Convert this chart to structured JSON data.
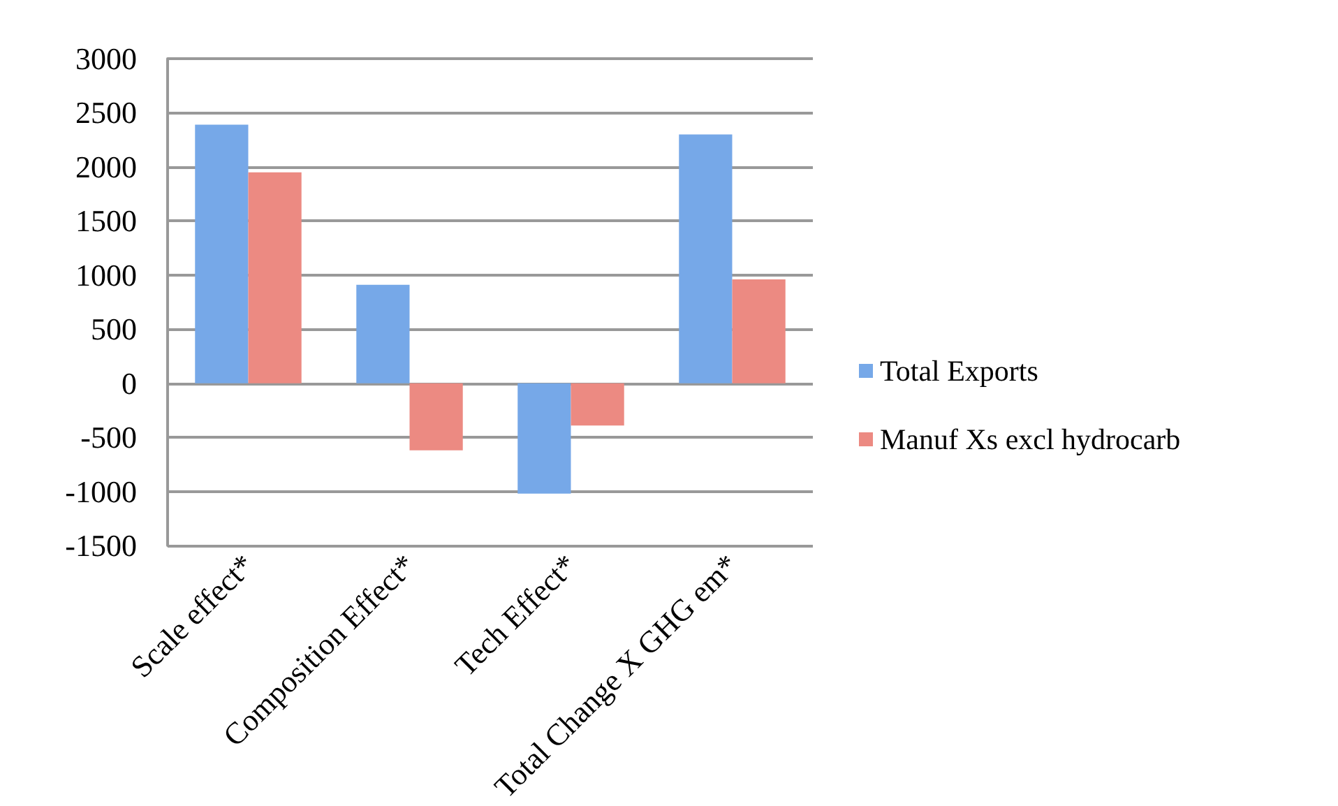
{
  "chart_data": {
    "type": "bar",
    "categories": [
      "Scale effect*",
      "Composition Effect*",
      "Tech Effect*",
      "Total Change X GHG em*"
    ],
    "series": [
      {
        "name": "Total Exports",
        "color": "#76a8e8",
        "values": [
          2390,
          910,
          -1020,
          2300
        ]
      },
      {
        "name": "Manuf Xs excl hydrocarb",
        "color": "#ec8a82",
        "values": [
          1950,
          -620,
          -390,
          960
        ]
      }
    ],
    "ylim": [
      -1500,
      3000
    ],
    "yticks": [
      -1500,
      -1000,
      -500,
      0,
      500,
      1000,
      1500,
      2000,
      2500,
      3000
    ],
    "grid": "y",
    "legend": "right"
  }
}
